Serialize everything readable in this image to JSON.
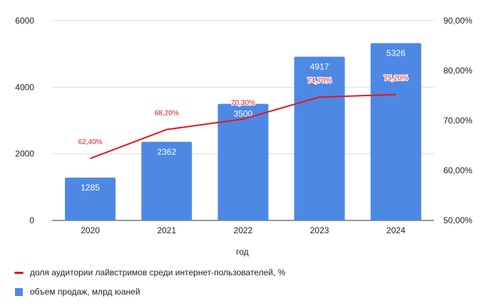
{
  "chart_data": {
    "type": "bar",
    "categories": [
      "2020",
      "2021",
      "2022",
      "2023",
      "2024"
    ],
    "xlabel": "год",
    "series": [
      {
        "name": "объем продаж, млрд юаней",
        "kind": "bar",
        "axis": "left",
        "color": "#4e88e5",
        "values": [
          1285,
          2362,
          3500,
          4917,
          5326
        ],
        "labels": [
          "1285",
          "2362",
          "3500",
          "4917",
          "5326"
        ]
      },
      {
        "name": "доля аудитории лайвстримов среди интернет-пользователей, %",
        "kind": "line",
        "axis": "right",
        "color": "#e8141a",
        "values": [
          62.4,
          68.2,
          70.3,
          74.7,
          75.2
        ],
        "labels": [
          "62,40%",
          "68,20%",
          "70,30%",
          "74,70%",
          "75,20%"
        ]
      }
    ],
    "y_left": {
      "min": 0,
      "max": 6000,
      "ticks": [
        0,
        2000,
        4000,
        6000
      ],
      "tick_labels": [
        "0",
        "2000",
        "4000",
        "6000"
      ]
    },
    "y_right": {
      "min": 50,
      "max": 90,
      "ticks": [
        50,
        60,
        70,
        80,
        90
      ],
      "tick_labels": [
        "50,00%",
        "60,00%",
        "70,00%",
        "80,00%",
        "90,00%"
      ]
    },
    "grid": true,
    "legend_position": "bottom-left"
  }
}
